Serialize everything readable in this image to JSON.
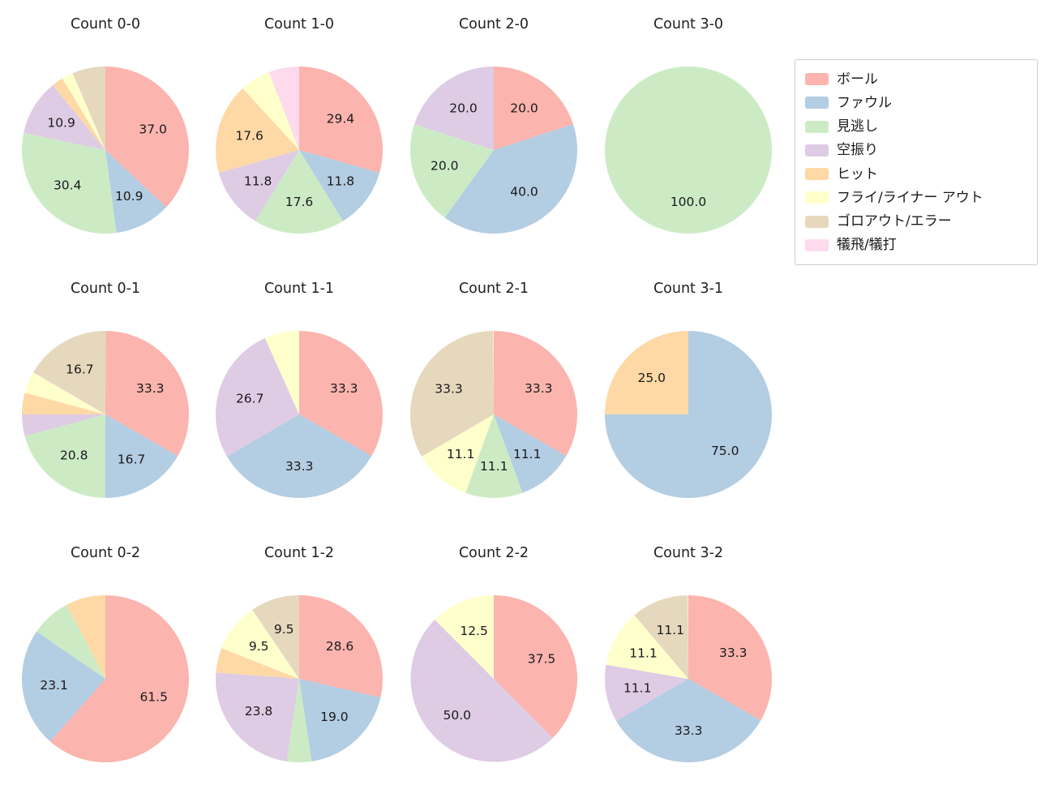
{
  "figure": {
    "background": "#ffffff"
  },
  "legend": {
    "items": [
      {
        "label": "ボール",
        "color": "#fbb4ae"
      },
      {
        "label": "ファウル",
        "color": "#b3cde3"
      },
      {
        "label": "見逃し",
        "color": "#ccebc5"
      },
      {
        "label": "空振り",
        "color": "#decbe4"
      },
      {
        "label": "ヒット",
        "color": "#fed9a6"
      },
      {
        "label": "フライ/ライナー アウト",
        "color": "#ffffcc"
      },
      {
        "label": "ゴロアウト/エラー",
        "color": "#e5d8bd"
      },
      {
        "label": "犠飛/犠打",
        "color": "#fddaec"
      }
    ]
  },
  "chart_data": [
    {
      "type": "pie",
      "title": "Count 0-0",
      "start_angle": 90,
      "direction": "clockwise",
      "slices": [
        {
          "category": "ボール",
          "value": 37.0,
          "labeled": true
        },
        {
          "category": "ファウル",
          "value": 10.9,
          "labeled": true
        },
        {
          "category": "見逃し",
          "value": 30.4,
          "labeled": true
        },
        {
          "category": "空振り",
          "value": 10.9,
          "labeled": true
        },
        {
          "category": "ヒット",
          "value": 2.2,
          "labeled": false
        },
        {
          "category": "フライ/ライナー アウト",
          "value": 2.2,
          "labeled": false
        },
        {
          "category": "ゴロアウト/エラー",
          "value": 6.4,
          "labeled": false
        }
      ]
    },
    {
      "type": "pie",
      "title": "Count 1-0",
      "start_angle": 90,
      "direction": "clockwise",
      "slices": [
        {
          "category": "ボール",
          "value": 29.4,
          "labeled": true
        },
        {
          "category": "ファウル",
          "value": 11.8,
          "labeled": true
        },
        {
          "category": "見逃し",
          "value": 17.6,
          "labeled": true
        },
        {
          "category": "空振り",
          "value": 11.8,
          "labeled": true
        },
        {
          "category": "ヒット",
          "value": 17.6,
          "labeled": true
        },
        {
          "category": "フライ/ライナー アウト",
          "value": 5.9,
          "labeled": false
        },
        {
          "category": "犠飛/犠打",
          "value": 5.9,
          "labeled": false
        }
      ]
    },
    {
      "type": "pie",
      "title": "Count 2-0",
      "start_angle": 90,
      "direction": "clockwise",
      "slices": [
        {
          "category": "ボール",
          "value": 20.0,
          "labeled": true
        },
        {
          "category": "ファウル",
          "value": 40.0,
          "labeled": true
        },
        {
          "category": "見逃し",
          "value": 20.0,
          "labeled": true
        },
        {
          "category": "空振り",
          "value": 20.0,
          "labeled": true
        }
      ]
    },
    {
      "type": "pie",
      "title": "Count 3-0",
      "start_angle": 90,
      "direction": "clockwise",
      "slices": [
        {
          "category": "見逃し",
          "value": 100.0,
          "labeled": true
        }
      ]
    },
    {
      "type": "pie",
      "title": "Count 0-1",
      "start_angle": 90,
      "direction": "clockwise",
      "slices": [
        {
          "category": "ボール",
          "value": 33.3,
          "labeled": true
        },
        {
          "category": "ファウル",
          "value": 16.7,
          "labeled": true
        },
        {
          "category": "見逃し",
          "value": 20.8,
          "labeled": true
        },
        {
          "category": "空振り",
          "value": 4.2,
          "labeled": false
        },
        {
          "category": "ヒット",
          "value": 4.2,
          "labeled": false
        },
        {
          "category": "フライ/ライナー アウト",
          "value": 4.2,
          "labeled": false
        },
        {
          "category": "ゴロアウト/エラー",
          "value": 16.7,
          "labeled": true
        }
      ]
    },
    {
      "type": "pie",
      "title": "Count 1-1",
      "start_angle": 90,
      "direction": "clockwise",
      "slices": [
        {
          "category": "ボール",
          "value": 33.3,
          "labeled": true
        },
        {
          "category": "ファウル",
          "value": 33.3,
          "labeled": true
        },
        {
          "category": "空振り",
          "value": 26.7,
          "labeled": true
        },
        {
          "category": "フライ/ライナー アウト",
          "value": 6.7,
          "labeled": false
        }
      ]
    },
    {
      "type": "pie",
      "title": "Count 2-1",
      "start_angle": 90,
      "direction": "clockwise",
      "slices": [
        {
          "category": "ボール",
          "value": 33.3,
          "labeled": true
        },
        {
          "category": "ファウル",
          "value": 11.1,
          "labeled": true
        },
        {
          "category": "見逃し",
          "value": 11.1,
          "labeled": true
        },
        {
          "category": "フライ/ライナー アウト",
          "value": 11.1,
          "labeled": true
        },
        {
          "category": "ゴロアウト/エラー",
          "value": 33.3,
          "labeled": true
        }
      ]
    },
    {
      "type": "pie",
      "title": "Count 3-1",
      "start_angle": 90,
      "direction": "clockwise",
      "slices": [
        {
          "category": "ファウル",
          "value": 75.0,
          "labeled": true
        },
        {
          "category": "ヒット",
          "value": 25.0,
          "labeled": true
        }
      ]
    },
    {
      "type": "pie",
      "title": "Count 0-2",
      "start_angle": 90,
      "direction": "clockwise",
      "slices": [
        {
          "category": "ボール",
          "value": 61.5,
          "labeled": true
        },
        {
          "category": "ファウル",
          "value": 23.1,
          "labeled": true
        },
        {
          "category": "見逃し",
          "value": 7.7,
          "labeled": false
        },
        {
          "category": "ヒット",
          "value": 7.7,
          "labeled": false
        }
      ]
    },
    {
      "type": "pie",
      "title": "Count 1-2",
      "start_angle": 90,
      "direction": "clockwise",
      "slices": [
        {
          "category": "ボール",
          "value": 28.6,
          "labeled": true
        },
        {
          "category": "ファウル",
          "value": 19.0,
          "labeled": true
        },
        {
          "category": "見逃し",
          "value": 4.8,
          "labeled": false
        },
        {
          "category": "空振り",
          "value": 23.8,
          "labeled": true
        },
        {
          "category": "ヒット",
          "value": 4.8,
          "labeled": false
        },
        {
          "category": "フライ/ライナー アウト",
          "value": 9.5,
          "labeled": true
        },
        {
          "category": "ゴロアウト/エラー",
          "value": 9.5,
          "labeled": true
        }
      ]
    },
    {
      "type": "pie",
      "title": "Count 2-2",
      "start_angle": 90,
      "direction": "clockwise",
      "slices": [
        {
          "category": "ボール",
          "value": 37.5,
          "labeled": true
        },
        {
          "category": "空振り",
          "value": 50.0,
          "labeled": true
        },
        {
          "category": "フライ/ライナー アウト",
          "value": 12.5,
          "labeled": true
        }
      ]
    },
    {
      "type": "pie",
      "title": "Count 3-2",
      "start_angle": 90,
      "direction": "clockwise",
      "slices": [
        {
          "category": "ボール",
          "value": 33.3,
          "labeled": true
        },
        {
          "category": "ファウル",
          "value": 33.3,
          "labeled": true
        },
        {
          "category": "空振り",
          "value": 11.1,
          "labeled": true
        },
        {
          "category": "フライ/ライナー アウト",
          "value": 11.1,
          "labeled": true
        },
        {
          "category": "ゴロアウト/エラー",
          "value": 11.1,
          "labeled": true
        }
      ]
    }
  ]
}
